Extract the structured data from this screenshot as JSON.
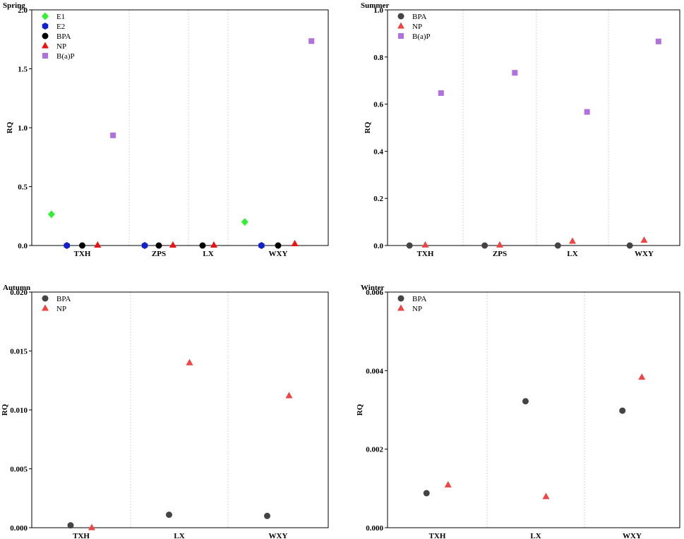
{
  "chart_data": [
    {
      "type": "scatter",
      "title": "Spring",
      "ylabel": "RQ",
      "ylim": [
        0,
        2.0
      ],
      "yticks": [
        "0.0",
        "0.5",
        "1.0",
        "1.5",
        "2.0"
      ],
      "ytick_values": [
        0,
        0.5,
        1.0,
        1.5,
        2.0
      ],
      "legend_position": "top-left",
      "groups": [
        {
          "label": "TXH",
          "slots": 5
        },
        {
          "label": "ZPS",
          "slots": 3
        },
        {
          "label": "LX",
          "slots": 2
        },
        {
          "label": "WXY",
          "slots": 5
        }
      ],
      "series": [
        {
          "name": "E1",
          "marker": "diamond",
          "color": "#33ee33",
          "points": [
            {
              "group": "TXH",
              "slot": 0,
              "y": 0.265
            },
            {
              "group": "WXY",
              "slot": 0,
              "y": 0.2
            }
          ]
        },
        {
          "name": "E2",
          "marker": "hexagon",
          "color": "#1122cc",
          "points": [
            {
              "group": "TXH",
              "slot": 1,
              "y": 0.0
            },
            {
              "group": "ZPS",
              "slot": 0,
              "y": 0.0
            },
            {
              "group": "WXY",
              "slot": 1,
              "y": 0.0
            }
          ]
        },
        {
          "name": "BPA",
          "marker": "circle",
          "color": "#000000",
          "points": [
            {
              "group": "TXH",
              "slot": 2,
              "y": 0.0
            },
            {
              "group": "ZPS",
              "slot": 1,
              "y": 0.0
            },
            {
              "group": "LX",
              "slot": 0,
              "y": 0.0
            },
            {
              "group": "WXY",
              "slot": 2,
              "y": 0.0
            }
          ]
        },
        {
          "name": "NP",
          "marker": "triangle",
          "color": "#ee1111",
          "points": [
            {
              "group": "TXH",
              "slot": 3,
              "y": 0.003
            },
            {
              "group": "ZPS",
              "slot": 2,
              "y": 0.003
            },
            {
              "group": "LX",
              "slot": 1,
              "y": 0.003
            },
            {
              "group": "WXY",
              "slot": 3,
              "y": 0.015
            }
          ]
        },
        {
          "name": "B(a)P",
          "marker": "square",
          "color": "#b070dd",
          "points": [
            {
              "group": "TXH",
              "slot": 4,
              "y": 0.935
            },
            {
              "group": "WXY",
              "slot": 4,
              "y": 1.735
            }
          ]
        }
      ]
    },
    {
      "type": "scatter",
      "title": "Summer",
      "ylabel": "RQ",
      "ylim": [
        0,
        1.0
      ],
      "yticks": [
        "0.0",
        "0.2",
        "0.4",
        "0.6",
        "0.8",
        "1.0"
      ],
      "ytick_values": [
        0,
        0.2,
        0.4,
        0.6,
        0.8,
        1.0
      ],
      "legend_position": "top-left",
      "groups": [
        {
          "label": "TXH",
          "slots": 3
        },
        {
          "label": "ZPS",
          "slots": 3
        },
        {
          "label": "LX",
          "slots": 3
        },
        {
          "label": "WXY",
          "slots": 3
        }
      ],
      "series": [
        {
          "name": "BPA",
          "marker": "circle",
          "color": "#444444",
          "points": [
            {
              "group": "TXH",
              "slot": 0,
              "y": 0.0
            },
            {
              "group": "ZPS",
              "slot": 0,
              "y": 0.0
            },
            {
              "group": "LX",
              "slot": 0,
              "y": 0.0
            },
            {
              "group": "WXY",
              "slot": 0,
              "y": 0.0
            }
          ]
        },
        {
          "name": "NP",
          "marker": "triangle",
          "color": "#ee4444",
          "points": [
            {
              "group": "TXH",
              "slot": 1,
              "y": 0.002
            },
            {
              "group": "ZPS",
              "slot": 1,
              "y": 0.002
            },
            {
              "group": "LX",
              "slot": 1,
              "y": 0.018
            },
            {
              "group": "WXY",
              "slot": 1,
              "y": 0.022
            }
          ]
        },
        {
          "name": "B(a)P",
          "marker": "square",
          "color": "#b070dd",
          "points": [
            {
              "group": "TXH",
              "slot": 2,
              "y": 0.647
            },
            {
              "group": "ZPS",
              "slot": 2,
              "y": 0.733
            },
            {
              "group": "LX",
              "slot": 2,
              "y": 0.567
            },
            {
              "group": "WXY",
              "slot": 2,
              "y": 0.866
            }
          ]
        }
      ]
    },
    {
      "type": "scatter",
      "title": "Autumn",
      "ylabel": "RQ",
      "ylim": [
        0,
        0.02
      ],
      "yticks": [
        "0.000",
        "0.005",
        "0.010",
        "0.015",
        "0.020"
      ],
      "ytick_values": [
        0,
        0.005,
        0.01,
        0.015,
        0.02
      ],
      "legend_position": "top-left",
      "groups": [
        {
          "label": "TXH",
          "slots": 2
        },
        {
          "label": "LX",
          "slots": 2
        },
        {
          "label": "WXY",
          "slots": 2
        }
      ],
      "series": [
        {
          "name": "BPA",
          "marker": "circle",
          "color": "#444444",
          "points": [
            {
              "group": "TXH",
              "slot": 0,
              "y": 0.0002
            },
            {
              "group": "LX",
              "slot": 0,
              "y": 0.0011
            },
            {
              "group": "WXY",
              "slot": 0,
              "y": 0.001
            }
          ]
        },
        {
          "name": "NP",
          "marker": "triangle",
          "color": "#ee4444",
          "points": [
            {
              "group": "TXH",
              "slot": 1,
              "y": 0.0
            },
            {
              "group": "LX",
              "slot": 1,
              "y": 0.014
            },
            {
              "group": "WXY",
              "slot": 1,
              "y": 0.0112
            }
          ]
        }
      ]
    },
    {
      "type": "scatter",
      "title": "Winter",
      "ylabel": "RQ",
      "ylim": [
        0,
        0.006
      ],
      "yticks": [
        "0.000",
        "0.002",
        "0.004",
        "0.006"
      ],
      "ytick_values": [
        0,
        0.002,
        0.004,
        0.006
      ],
      "legend_position": "top-left",
      "groups": [
        {
          "label": "TXH",
          "slots": 2
        },
        {
          "label": "LX",
          "slots": 2
        },
        {
          "label": "WXY",
          "slots": 2
        }
      ],
      "series": [
        {
          "name": "BPA",
          "marker": "circle",
          "color": "#444444",
          "points": [
            {
              "group": "TXH",
              "slot": 0,
              "y": 0.00088
            },
            {
              "group": "LX",
              "slot": 0,
              "y": 0.00322
            },
            {
              "group": "WXY",
              "slot": 0,
              "y": 0.00298
            }
          ]
        },
        {
          "name": "NP",
          "marker": "triangle",
          "color": "#ee4444",
          "points": [
            {
              "group": "TXH",
              "slot": 1,
              "y": 0.00109
            },
            {
              "group": "LX",
              "slot": 1,
              "y": 0.00079
            },
            {
              "group": "WXY",
              "slot": 1,
              "y": 0.00383
            }
          ]
        }
      ]
    }
  ]
}
